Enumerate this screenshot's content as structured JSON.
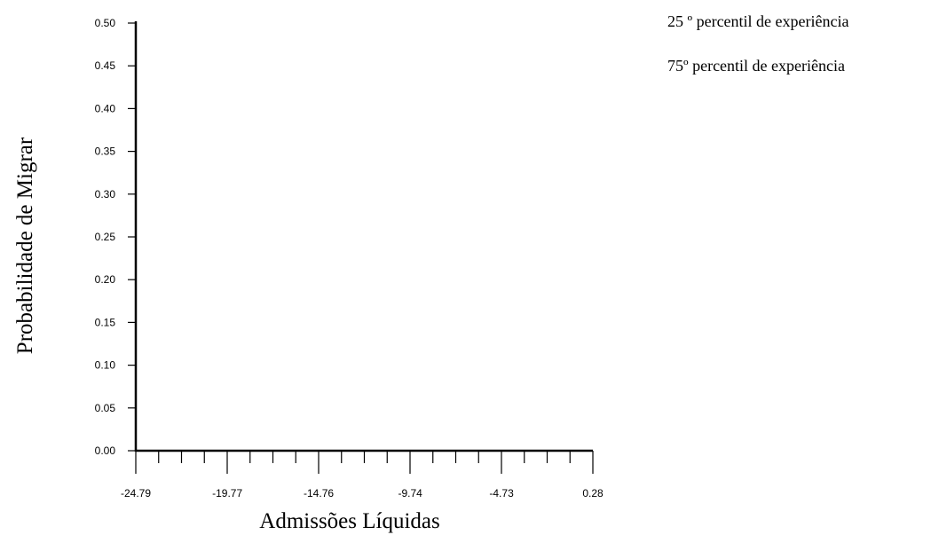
{
  "chart_data": {
    "type": "line",
    "xlabel": "Admissões Líquidas",
    "ylabel": "Probabilidade de Migrar",
    "xlim": [
      -24.79,
      0.28
    ],
    "ylim": [
      0.0,
      0.5
    ],
    "x_ticks": [
      "-24.79",
      "-19.77",
      "-14.76",
      "-9.74",
      "-4.73",
      "0.28"
    ],
    "y_ticks": [
      "0.00",
      "0.05",
      "0.10",
      "0.15",
      "0.20",
      "0.25",
      "0.30",
      "0.35",
      "0.40",
      "0.45",
      "0.50"
    ],
    "grid": false,
    "legend_position": "top-right",
    "series": [
      {
        "name": "25 º percentil de experiência",
        "x": [],
        "y": []
      },
      {
        "name": "75º percentil de experiência",
        "x": [],
        "y": []
      }
    ]
  }
}
